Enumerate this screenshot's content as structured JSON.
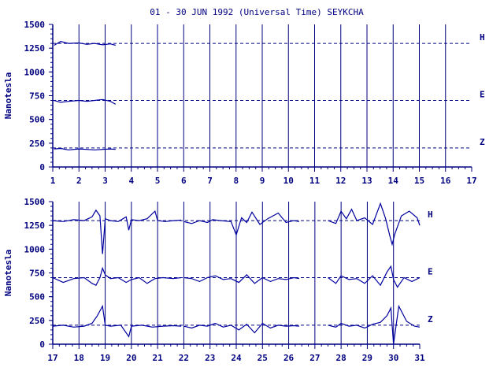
{
  "title": "01 - 30 JUN 1992 (Universal Time) SEYKCHA",
  "colors": {
    "axis": "#000080",
    "trace": "#0000a0",
    "dash": "#000080",
    "background": "#ffffff"
  },
  "chart_data": [
    {
      "type": "line",
      "panel": "top",
      "title": "01 - 30 JUN 1992 (Universal Time) SEYKCHA",
      "ylabel": "Nanotesla",
      "xlabel": "",
      "xlim": [
        1,
        17
      ],
      "ylim": [
        0,
        1500
      ],
      "x_ticks": [
        "1",
        "2",
        "3",
        "4",
        "5",
        "6",
        "7",
        "8",
        "9",
        "10",
        "11",
        "12",
        "13",
        "14",
        "15",
        "16",
        "17"
      ],
      "y_ticks": [
        "0",
        "250",
        "500",
        "750",
        "1000",
        "1250",
        "1500"
      ],
      "grid": "vertical lines at each day",
      "legend": "right edge labels",
      "baselines": [
        {
          "name": "H",
          "value": 1300
        },
        {
          "name": "E",
          "value": 700
        },
        {
          "name": "Z",
          "value": 200
        }
      ],
      "series": [
        {
          "name": "H",
          "x": [
            1.05,
            1.3,
            1.6,
            2.0,
            2.3,
            2.6,
            2.9,
            3.2,
            3.4
          ],
          "values": [
            1280,
            1320,
            1300,
            1305,
            1290,
            1300,
            1285,
            1295,
            1280
          ]
        },
        {
          "name": "E",
          "x": [
            1.05,
            1.3,
            1.6,
            2.0,
            2.3,
            2.6,
            2.9,
            3.2,
            3.4
          ],
          "values": [
            700,
            680,
            690,
            700,
            690,
            700,
            710,
            690,
            660
          ]
        },
        {
          "name": "Z",
          "x": [
            1.05,
            1.3,
            1.6,
            2.0,
            2.3,
            2.6,
            2.9,
            3.2,
            3.4
          ],
          "values": [
            190,
            195,
            180,
            190,
            185,
            180,
            185,
            190,
            185
          ]
        }
      ]
    },
    {
      "type": "line",
      "panel": "bottom",
      "ylabel": "Nanotesla",
      "xlabel": "",
      "xlim": [
        17,
        31
      ],
      "ylim": [
        0,
        1500
      ],
      "x_ticks": [
        "17",
        "18",
        "19",
        "20",
        "21",
        "22",
        "23",
        "24",
        "25",
        "26",
        "27",
        "28",
        "29",
        "30",
        "31"
      ],
      "y_ticks": [
        "0",
        "250",
        "500",
        "750",
        "1000",
        "1250",
        "1500"
      ],
      "grid": "vertical lines at each day",
      "legend": "right edge labels",
      "baselines": [
        {
          "name": "H",
          "value": 1300
        },
        {
          "name": "E",
          "value": 700
        },
        {
          "name": "Z",
          "value": 200
        }
      ],
      "series": [
        {
          "name": "H",
          "segments": [
            {
              "x": [
                17.0,
                17.4,
                17.8,
                18.2,
                18.5,
                18.65,
                18.8,
                18.9,
                19.0,
                19.2,
                19.5,
                19.8,
                19.9,
                20.0,
                20.3,
                20.6,
                20.9,
                21.0,
                21.3,
                21.6,
                21.9
              ],
              "values": [
                1300,
                1290,
                1310,
                1300,
                1340,
                1410,
                1350,
                950,
                1320,
                1300,
                1290,
                1340,
                1200,
                1310,
                1300,
                1320,
                1400,
                1300,
                1290,
                1300,
                1305
              ]
            },
            {
              "x": [
                22.0,
                22.3,
                22.6,
                22.9,
                23.1,
                23.4,
                23.8,
                24.0,
                24.2,
                24.4,
                24.6,
                24.9,
                25.2,
                25.6,
                25.9,
                26.2,
                26.4
              ],
              "values": [
                1290,
                1270,
                1300,
                1280,
                1310,
                1300,
                1290,
                1150,
                1330,
                1280,
                1390,
                1260,
                1320,
                1380,
                1280,
                1300,
                1290
              ]
            },
            {
              "x": [
                27.5,
                27.8,
                28.0,
                28.2,
                28.4,
                28.6,
                28.9,
                29.2,
                29.5,
                29.7,
                29.85,
                29.95,
                30.05,
                30.3,
                30.6,
                30.9,
                31.0
              ],
              "values": [
                1300,
                1270,
                1400,
                1320,
                1420,
                1300,
                1330,
                1260,
                1480,
                1320,
                1150,
                1050,
                1160,
                1350,
                1400,
                1330,
                1250
              ]
            }
          ]
        },
        {
          "name": "E",
          "segments": [
            {
              "x": [
                17.0,
                17.4,
                17.8,
                18.2,
                18.5,
                18.65,
                18.8,
                18.9,
                19.0,
                19.2,
                19.5,
                19.8,
                20.0,
                20.3,
                20.6,
                20.9,
                21.2,
                21.6,
                21.9
              ],
              "values": [
                700,
                650,
                690,
                700,
                640,
                620,
                700,
                800,
                730,
                690,
                700,
                650,
                680,
                700,
                640,
                690,
                700,
                690,
                700
              ]
            },
            {
              "x": [
                22.0,
                22.3,
                22.6,
                22.9,
                23.2,
                23.5,
                23.8,
                24.1,
                24.4,
                24.7,
                25.0,
                25.3,
                25.6,
                25.9,
                26.2,
                26.4
              ],
              "values": [
                700,
                690,
                660,
                700,
                720,
                680,
                690,
                650,
                730,
                640,
                700,
                660,
                690,
                680,
                700,
                690
              ]
            },
            {
              "x": [
                27.5,
                27.8,
                28.0,
                28.3,
                28.6,
                28.9,
                29.2,
                29.5,
                29.75,
                29.9,
                30.0,
                30.15,
                30.4,
                30.7,
                31.0
              ],
              "values": [
                700,
                640,
                720,
                680,
                690,
                640,
                720,
                620,
                760,
                820,
                680,
                600,
                700,
                660,
                700
              ]
            }
          ]
        },
        {
          "name": "Z",
          "segments": [
            {
              "x": [
                17.0,
                17.4,
                17.8,
                18.2,
                18.5,
                18.7,
                18.9,
                19.0,
                19.2,
                19.6,
                19.9,
                20.0,
                20.4,
                20.8,
                21.2,
                21.6,
                21.9
              ],
              "values": [
                190,
                200,
                180,
                190,
                220,
                300,
                400,
                200,
                190,
                200,
                80,
                190,
                200,
                180,
                190,
                195,
                190
              ]
            },
            {
              "x": [
                22.0,
                22.3,
                22.6,
                22.9,
                23.2,
                23.5,
                23.8,
                24.1,
                24.4,
                24.7,
                25.0,
                25.3,
                25.6,
                25.9,
                26.2,
                26.4
              ],
              "values": [
                190,
                170,
                200,
                190,
                220,
                180,
                200,
                150,
                210,
                120,
                220,
                170,
                200,
                190,
                195,
                190
              ]
            },
            {
              "x": [
                27.5,
                27.8,
                28.0,
                28.3,
                28.6,
                28.9,
                29.2,
                29.5,
                29.75,
                29.9,
                30.0,
                30.2,
                30.5,
                30.8,
                31.0
              ],
              "values": [
                200,
                180,
                220,
                190,
                200,
                170,
                210,
                230,
                300,
                380,
                0,
                400,
                240,
                190,
                180
              ]
            }
          ]
        }
      ]
    }
  ]
}
